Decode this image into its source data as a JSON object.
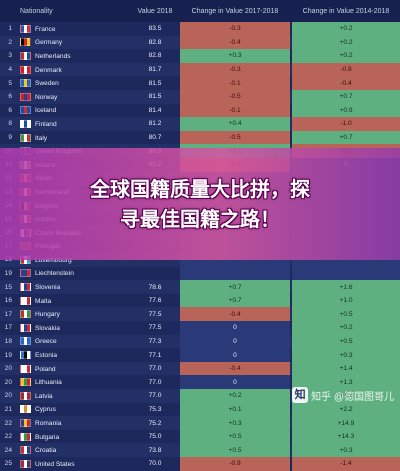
{
  "table": {
    "headers": [
      "",
      "Nationality",
      "Value 2018",
      "Change in Value 2017-2018",
      "Change in Value 2014-2018"
    ],
    "rows": [
      {
        "rank": "1",
        "name": "France",
        "value": "83.5",
        "ch1": "-0.3",
        "ch2": "+0.2",
        "flag": [
          "#2f4fb3",
          "#ffffff",
          "#d7322f"
        ]
      },
      {
        "rank": "2",
        "name": "Germany",
        "value": "82.8",
        "ch1": "-0.4",
        "ch2": "+0.2",
        "flag": [
          "#000000",
          "#d1262b",
          "#f2c12e"
        ]
      },
      {
        "rank": "3",
        "name": "Netherlands",
        "value": "82.8",
        "ch1": "+0.3",
        "ch2": "+0.2",
        "flag": [
          "#c42b2b",
          "#ffffff",
          "#25459c"
        ]
      },
      {
        "rank": "4",
        "name": "Denmark",
        "value": "81.7",
        "ch1": "-0.3",
        "ch2": "-0.8",
        "flag": [
          "#c8202f",
          "#ffffff",
          "#c8202f"
        ]
      },
      {
        "rank": "5",
        "name": "Sweden",
        "value": "81.5",
        "ch1": "-0.1",
        "ch2": "-0.4",
        "flag": [
          "#2a63a8",
          "#f2c12e",
          "#2a63a8"
        ]
      },
      {
        "rank": "6",
        "name": "Norway",
        "value": "81.5",
        "ch1": "-0.5",
        "ch2": "+0.7",
        "flag": [
          "#c8202f",
          "#24408e",
          "#c8202f"
        ]
      },
      {
        "rank": "6",
        "name": "Iceland",
        "value": "81.4",
        "ch1": "-0.1",
        "ch2": "+0.9",
        "flag": [
          "#1f4aa0",
          "#d82a2a",
          "#1f4aa0"
        ]
      },
      {
        "rank": "8",
        "name": "Finland",
        "value": "81.2",
        "ch1": "+0.4",
        "ch2": "-1.0",
        "flag": [
          "#ffffff",
          "#1b4ea3",
          "#ffffff"
        ]
      },
      {
        "rank": "9",
        "name": "Italy",
        "value": "80.7",
        "ch1": "-0.5",
        "ch2": "+0.7",
        "flag": [
          "#2c9a49",
          "#ffffff",
          "#d22b2b"
        ]
      },
      {
        "rank": "10",
        "name": "United Kingdom",
        "value": "80.3",
        "ch1": "+0.1",
        "ch2": "-0.2",
        "flag": [
          "#21357c",
          "#c8202f",
          "#21357c"
        ]
      },
      {
        "rank": "11",
        "name": "Ireland",
        "value": "80.2",
        "ch1": "-0.2",
        "ch2": "0",
        "flag": [
          "#2c9a49",
          "#ffffff",
          "#f08a2b"
        ]
      },
      {
        "rank": "12",
        "name": "Spain",
        "value": "",
        "ch1": "",
        "ch2": "",
        "flag": [
          "#c8202f",
          "#f2c12e",
          "#c8202f"
        ]
      },
      {
        "rank": "13",
        "name": "Switzerland",
        "value": "",
        "ch1": "",
        "ch2": "",
        "flag": [
          "#d42a2a",
          "#ffffff",
          "#d42a2a"
        ]
      },
      {
        "rank": "14",
        "name": "Belgium",
        "value": "",
        "ch1": "",
        "ch2": "",
        "flag": [
          "#000000",
          "#f2c12e",
          "#d1262b"
        ]
      },
      {
        "rank": "15",
        "name": "Austria",
        "value": "",
        "ch1": "",
        "ch2": "",
        "flag": [
          "#d1262b",
          "#ffffff",
          "#d1262b"
        ]
      },
      {
        "rank": "16",
        "name": "Czech Republic",
        "value": "",
        "ch1": "",
        "ch2": "",
        "flag": [
          "#ffffff",
          "#24408e",
          "#d1262b"
        ]
      },
      {
        "rank": "17",
        "name": "Portugal",
        "value": "",
        "ch1": "",
        "ch2": "",
        "flag": [
          "#1f7a3a",
          "#d1262b",
          "#d1262b"
        ]
      },
      {
        "rank": "18",
        "name": "Luxembourg",
        "value": "",
        "ch1": "",
        "ch2": "",
        "flag": [
          "#d1262b",
          "#ffffff",
          "#3aa0d8"
        ]
      },
      {
        "rank": "19",
        "name": "Liechtenstein",
        "value": "",
        "ch1": "",
        "ch2": "",
        "flag": [
          "#24408e",
          "#24408e",
          "#d1262b"
        ]
      },
      {
        "rank": "15",
        "name": "Slovenia",
        "value": "78.6",
        "ch1": "+0.7",
        "ch2": "+1.6",
        "flag": [
          "#ffffff",
          "#24408e",
          "#d1262b"
        ]
      },
      {
        "rank": "16",
        "name": "Malta",
        "value": "77.6",
        "ch1": "+0.7",
        "ch2": "+1.0",
        "flag": [
          "#ffffff",
          "#ffffff",
          "#d1262b"
        ]
      },
      {
        "rank": "17",
        "name": "Hungary",
        "value": "77.5",
        "ch1": "-0.4",
        "ch2": "+0.5",
        "flag": [
          "#d1262b",
          "#ffffff",
          "#2c9a49"
        ]
      },
      {
        "rank": "17",
        "name": "Slovakia",
        "value": "77.5",
        "ch1": "0",
        "ch2": "+0.2",
        "flag": [
          "#ffffff",
          "#24408e",
          "#d1262b"
        ]
      },
      {
        "rank": "18",
        "name": "Greece",
        "value": "77.3",
        "ch1": "0",
        "ch2": "+0.5",
        "flag": [
          "#2a63c4",
          "#ffffff",
          "#2a63c4"
        ]
      },
      {
        "rank": "19",
        "name": "Estonia",
        "value": "77.1",
        "ch1": "0",
        "ch2": "+0.3",
        "flag": [
          "#2f74c0",
          "#000000",
          "#ffffff"
        ]
      },
      {
        "rank": "20",
        "name": "Poland",
        "value": "77.0",
        "ch1": "-0.4",
        "ch2": "+1.4",
        "flag": [
          "#ffffff",
          "#ffffff",
          "#d1262b"
        ]
      },
      {
        "rank": "20",
        "name": "Lithuania",
        "value": "77.0",
        "ch1": "0",
        "ch2": "+1.3",
        "flag": [
          "#f2c12e",
          "#2c9a49",
          "#d1262b"
        ]
      },
      {
        "rank": "20",
        "name": "Latvia",
        "value": "77.0",
        "ch1": "+0.2",
        "ch2": "+1.9",
        "flag": [
          "#9e2b33",
          "#ffffff",
          "#9e2b33"
        ]
      },
      {
        "rank": "21",
        "name": "Cyprus",
        "value": "75.3",
        "ch1": "+0.1",
        "ch2": "+2.2",
        "flag": [
          "#ffffff",
          "#e08a2b",
          "#ffffff"
        ]
      },
      {
        "rank": "22",
        "name": "Romania",
        "value": "75.2",
        "ch1": "+0.3",
        "ch2": "+14.9",
        "flag": [
          "#24408e",
          "#f2c12e",
          "#d1262b"
        ]
      },
      {
        "rank": "22",
        "name": "Bulgaria",
        "value": "75.0",
        "ch1": "+0.5",
        "ch2": "+14.3",
        "flag": [
          "#ffffff",
          "#2c9a49",
          "#d1262b"
        ]
      },
      {
        "rank": "24",
        "name": "Croatia",
        "value": "73.8",
        "ch1": "+0.5",
        "ch2": "+0.3",
        "flag": [
          "#d1262b",
          "#ffffff",
          "#24408e"
        ]
      },
      {
        "rank": "25",
        "name": "United States",
        "value": "70.0",
        "ch1": "-0.9",
        "ch2": "-1.4",
        "flag": [
          "#b22234",
          "#ffffff",
          "#3c3b6e"
        ]
      }
    ]
  },
  "banner": {
    "line1": "全球国籍质量大比拼，探",
    "line2": "寻最佳国籍之路！"
  },
  "watermark": {
    "logo": "知",
    "text": "知乎 @德国图哥儿"
  },
  "colors": {
    "positive": "#5fb081",
    "negative": "#b86459",
    "neutral": "#2a3a78",
    "banner": "#c04fb0"
  }
}
